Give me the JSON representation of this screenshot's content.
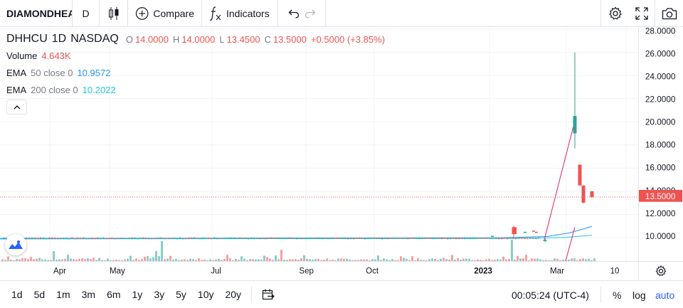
{
  "toolbar": {
    "symbol": "DIAMONDHEAD",
    "interval": "D",
    "compare_label": "Compare",
    "indicators_label": "Indicators"
  },
  "legend": {
    "symbol": "DHHCU",
    "interval": "1D",
    "exchange": "NASDAQ",
    "open_key": "O",
    "open": "14.0000",
    "high_key": "H",
    "high": "14.0000",
    "low_key": "L",
    "low": "13.4500",
    "close_key": "C",
    "close": "13.5000",
    "change": "+0.5000 (+3.85%)",
    "volume_label": "Volume",
    "volume_value": "4.643K",
    "ema50_label": "EMA",
    "ema50_params": "50 close 0",
    "ema50_value": "10.9572",
    "ema200_label": "EMA",
    "ema200_params": "200 close 0",
    "ema200_value": "10.2022"
  },
  "price_scale": {
    "labels": [
      "28.0000",
      "26.0000",
      "24.0000",
      "22.0000",
      "20.0000",
      "18.0000",
      "16.0000",
      "14.0000",
      "12.0000",
      "10.0000"
    ],
    "last_price": "13.5000"
  },
  "time_axis": {
    "labels": [
      "Apr",
      "May",
      "Jul",
      "Sep",
      "Oct",
      "2023",
      "Mar",
      "10"
    ]
  },
  "bottom_bar": {
    "ranges": [
      "1d",
      "5d",
      "1m",
      "3m",
      "6m",
      "1y",
      "3y",
      "5y",
      "10y",
      "20y"
    ],
    "clock": "00:05:24 (UTC-4)",
    "percent": "%",
    "log": "log",
    "auto": "auto"
  },
  "colors": {
    "up": "#26a69a",
    "down": "#ef5350",
    "ema50": "#2196f3",
    "ema200": "#26c6da",
    "accent": "#2962ff",
    "pink_line": "#e91e63"
  },
  "icons": [
    "candles-icon",
    "plus-circle-icon",
    "fx-icon",
    "undo-icon",
    "redo-icon",
    "settings-icon",
    "fullscreen-icon",
    "camera-icon",
    "chevron-up-icon",
    "calendar-goto-icon",
    "gear-icon",
    "tradingview-logo-icon"
  ],
  "chart_data": {
    "type": "candlestick",
    "symbol": "DHHCU",
    "ylim": [
      8.0,
      28.4
    ],
    "grid": true,
    "series": [
      {
        "name": "price",
        "values": [
          {
            "date": "2023-02-13",
            "open": 10.3,
            "high": 11.0,
            "low": 10.0,
            "close": 10.9
          },
          {
            "date": "2023-02-21",
            "open": 9.8,
            "high": 10.0,
            "low": 9.6,
            "close": 9.7
          },
          {
            "date": "2023-03-01",
            "open": 19.0,
            "high": 26.0,
            "low": 17.7,
            "close": 20.5
          },
          {
            "date": "2023-03-03",
            "open": 16.3,
            "high": 16.3,
            "low": 14.5,
            "close": 14.5
          },
          {
            "date": "2023-03-06",
            "open": 14.5,
            "high": 14.5,
            "low": 13.0,
            "close": 13.0
          },
          {
            "date": "2023-03-08",
            "open": 14.0,
            "high": 14.0,
            "low": 13.45,
            "close": 13.5
          }
        ]
      },
      {
        "name": "EMA 50",
        "last": 10.9572
      },
      {
        "name": "EMA 200",
        "last": 10.2022
      }
    ]
  }
}
